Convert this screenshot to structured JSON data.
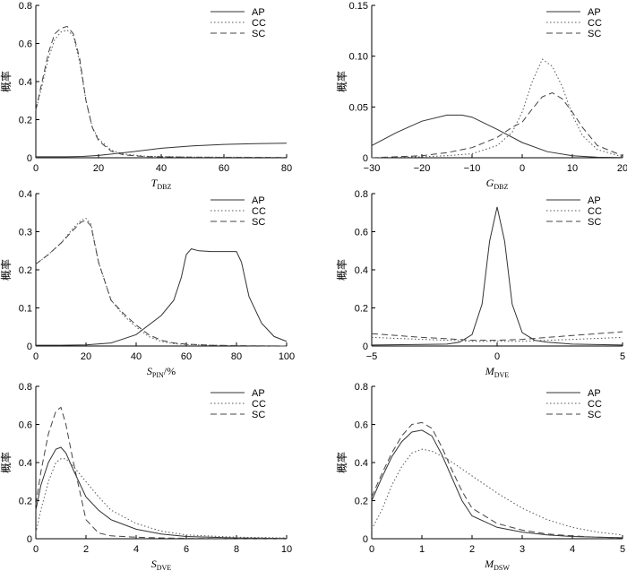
{
  "legend_labels": [
    "AP",
    "CC",
    "SC"
  ],
  "series_styles": {
    "AP": {
      "color": "#333333",
      "dash": ""
    },
    "CC": {
      "color": "#555555",
      "dash": "1.5,2.5"
    },
    "SC": {
      "color": "#444444",
      "dash": "7,4"
    }
  },
  "chart_data": [
    {
      "id": "tdbz",
      "type": "line",
      "ylabel": "概率",
      "xlabel_main": "T",
      "xlabel_sub": "DBZ",
      "xlabel_suffix": "",
      "xlim": [
        0,
        80
      ],
      "ylim": [
        0,
        0.8
      ],
      "xticks": [
        0,
        20,
        40,
        60,
        80
      ],
      "yticks": [
        0,
        0.2,
        0.4,
        0.6,
        0.8
      ],
      "xtick_labels": [
        "0",
        "20",
        "40",
        "60",
        "80"
      ],
      "ytick_labels": [
        "0",
        "0.2",
        "0.4",
        "0.6",
        "0.8"
      ],
      "series": [
        {
          "name": "AP",
          "x": [
            0,
            10,
            15,
            20,
            30,
            40,
            50,
            60,
            70,
            80
          ],
          "y": [
            0.005,
            0.005,
            0.007,
            0.012,
            0.03,
            0.05,
            0.062,
            0.07,
            0.074,
            0.076
          ]
        },
        {
          "name": "CC",
          "x": [
            0,
            2,
            4,
            6,
            8,
            10,
            12,
            14,
            16,
            18,
            20,
            24,
            28,
            35,
            50,
            80
          ],
          "y": [
            0.25,
            0.38,
            0.52,
            0.62,
            0.66,
            0.67,
            0.64,
            0.5,
            0.3,
            0.16,
            0.1,
            0.04,
            0.02,
            0.008,
            0.004,
            0.002
          ]
        },
        {
          "name": "SC",
          "x": [
            0,
            2,
            4,
            6,
            8,
            10,
            12,
            14,
            16,
            18,
            20,
            24,
            28,
            35,
            50,
            80
          ],
          "y": [
            0.25,
            0.4,
            0.55,
            0.65,
            0.68,
            0.69,
            0.65,
            0.52,
            0.3,
            0.16,
            0.09,
            0.035,
            0.015,
            0.006,
            0.003,
            0.002
          ]
        }
      ]
    },
    {
      "id": "gdbz",
      "type": "line",
      "ylabel": "概率",
      "xlabel_main": "G",
      "xlabel_sub": "DBZ",
      "xlabel_suffix": "",
      "xlim": [
        -30,
        20
      ],
      "ylim": [
        0,
        0.15
      ],
      "xticks": [
        -30,
        -20,
        -10,
        0,
        10,
        20
      ],
      "yticks": [
        0,
        0.05,
        0.1,
        0.15
      ],
      "xtick_labels": [
        "−30",
        "−20",
        "−10",
        "0",
        "10",
        "20"
      ],
      "ytick_labels": [
        "0",
        "0.05",
        "0.10",
        "0.15"
      ],
      "series": [
        {
          "name": "AP",
          "x": [
            -30,
            -25,
            -20,
            -15,
            -12,
            -10,
            -5,
            0,
            5,
            10,
            15,
            20
          ],
          "y": [
            0.012,
            0.025,
            0.036,
            0.042,
            0.042,
            0.04,
            0.028,
            0.015,
            0.006,
            0.002,
            0.0005,
            0.0002
          ]
        },
        {
          "name": "CC",
          "x": [
            -30,
            -20,
            -15,
            -10,
            -5,
            -2,
            0,
            2,
            4,
            6,
            8,
            10,
            12,
            15,
            20
          ],
          "y": [
            0.0,
            0.001,
            0.002,
            0.004,
            0.012,
            0.025,
            0.045,
            0.075,
            0.097,
            0.09,
            0.07,
            0.042,
            0.022,
            0.008,
            0.001
          ]
        },
        {
          "name": "SC",
          "x": [
            -30,
            -20,
            -15,
            -10,
            -5,
            -2,
            0,
            2,
            4,
            6,
            8,
            10,
            12,
            15,
            20
          ],
          "y": [
            0.0,
            0.002,
            0.005,
            0.01,
            0.02,
            0.03,
            0.035,
            0.048,
            0.06,
            0.064,
            0.058,
            0.045,
            0.03,
            0.012,
            0.002
          ]
        }
      ]
    },
    {
      "id": "spin",
      "type": "line",
      "ylabel": "概率",
      "xlabel_main": "S",
      "xlabel_sub": "PIN",
      "xlabel_suffix": "/%",
      "xlim": [
        0,
        100
      ],
      "ylim": [
        0,
        0.4
      ],
      "xticks": [
        0,
        20,
        40,
        60,
        80,
        100
      ],
      "yticks": [
        0,
        0.1,
        0.2,
        0.3,
        0.4
      ],
      "xtick_labels": [
        "0",
        "20",
        "40",
        "60",
        "80",
        "100"
      ],
      "ytick_labels": [
        "0",
        "0.1",
        "0.2",
        "0.3",
        "0.4"
      ],
      "series": [
        {
          "name": "AP",
          "x": [
            0,
            10,
            20,
            30,
            40,
            50,
            55,
            58,
            60,
            62,
            65,
            70,
            75,
            80,
            82,
            85,
            90,
            95,
            100
          ],
          "y": [
            0.002,
            0.002,
            0.003,
            0.008,
            0.03,
            0.08,
            0.12,
            0.18,
            0.24,
            0.255,
            0.25,
            0.248,
            0.248,
            0.248,
            0.22,
            0.13,
            0.06,
            0.025,
            0.012
          ]
        },
        {
          "name": "CC",
          "x": [
            0,
            5,
            10,
            15,
            18,
            20,
            22,
            25,
            30,
            35,
            40,
            45,
            50,
            55,
            60,
            70,
            80,
            100
          ],
          "y": [
            0.215,
            0.24,
            0.27,
            0.31,
            0.33,
            0.335,
            0.32,
            0.22,
            0.12,
            0.08,
            0.05,
            0.025,
            0.012,
            0.006,
            0.004,
            0.002,
            0.001,
            0.0
          ]
        },
        {
          "name": "SC",
          "x": [
            0,
            5,
            10,
            15,
            18,
            20,
            22,
            25,
            30,
            35,
            40,
            45,
            50,
            55,
            60,
            70,
            80,
            100
          ],
          "y": [
            0.215,
            0.24,
            0.27,
            0.305,
            0.325,
            0.33,
            0.315,
            0.22,
            0.12,
            0.085,
            0.055,
            0.03,
            0.015,
            0.008,
            0.005,
            0.002,
            0.001,
            0.0
          ]
        }
      ]
    },
    {
      "id": "mdve",
      "type": "line",
      "ylabel": "概率",
      "xlabel_main": "M",
      "xlabel_sub": "DVE",
      "xlabel_suffix": "",
      "xlim": [
        -5,
        5
      ],
      "ylim": [
        0,
        0.8
      ],
      "xticks": [
        -5,
        0,
        5
      ],
      "yticks": [
        0,
        0.2,
        0.4,
        0.6,
        0.8
      ],
      "xtick_labels": [
        "−5",
        "0",
        "5"
      ],
      "ytick_labels": [
        "0",
        "0.2",
        "0.4",
        "0.6",
        "0.8"
      ],
      "series": [
        {
          "name": "AP",
          "x": [
            -5,
            -3,
            -2,
            -1.5,
            -1,
            -0.6,
            -0.3,
            0,
            0.3,
            0.6,
            1,
            1.5,
            2,
            3,
            5
          ],
          "y": [
            0.005,
            0.008,
            0.01,
            0.02,
            0.06,
            0.22,
            0.55,
            0.73,
            0.55,
            0.22,
            0.07,
            0.03,
            0.02,
            0.01,
            0.005
          ]
        },
        {
          "name": "CC",
          "x": [
            -5,
            -4,
            -3,
            -2,
            -1,
            0,
            1,
            2,
            3,
            4,
            5
          ],
          "y": [
            0.045,
            0.04,
            0.035,
            0.03,
            0.025,
            0.025,
            0.025,
            0.03,
            0.035,
            0.04,
            0.045
          ]
        },
        {
          "name": "SC",
          "x": [
            -5,
            -4,
            -3,
            -2,
            -1,
            0,
            1,
            2,
            3,
            4,
            5
          ],
          "y": [
            0.065,
            0.055,
            0.045,
            0.038,
            0.03,
            0.03,
            0.035,
            0.045,
            0.055,
            0.065,
            0.075
          ]
        }
      ]
    },
    {
      "id": "sdve",
      "type": "line",
      "ylabel": "概率",
      "xlabel_main": "S",
      "xlabel_sub": "DVE",
      "xlabel_suffix": "",
      "xlim": [
        0,
        10
      ],
      "ylim": [
        0,
        0.8
      ],
      "xticks": [
        0,
        2,
        4,
        6,
        8,
        10
      ],
      "yticks": [
        0,
        0.2,
        0.4,
        0.6,
        0.8
      ],
      "xtick_labels": [
        "0",
        "2",
        "4",
        "6",
        "8",
        "10"
      ],
      "ytick_labels": [
        "0",
        "0.2",
        "0.4",
        "0.6",
        "0.8"
      ],
      "series": [
        {
          "name": "AP",
          "x": [
            0,
            0.2,
            0.5,
            0.8,
            1.0,
            1.2,
            1.5,
            2,
            2.5,
            3,
            4,
            5,
            6,
            8,
            10
          ],
          "y": [
            0.15,
            0.28,
            0.4,
            0.47,
            0.48,
            0.45,
            0.36,
            0.22,
            0.15,
            0.1,
            0.05,
            0.025,
            0.012,
            0.004,
            0.002
          ]
        },
        {
          "name": "CC",
          "x": [
            0,
            0.2,
            0.5,
            0.8,
            1.0,
            1.2,
            1.5,
            2,
            2.5,
            3,
            4,
            5,
            6,
            8,
            10
          ],
          "y": [
            0.03,
            0.15,
            0.3,
            0.4,
            0.42,
            0.42,
            0.38,
            0.3,
            0.22,
            0.15,
            0.08,
            0.04,
            0.02,
            0.008,
            0.004
          ]
        },
        {
          "name": "SC",
          "x": [
            0,
            0.2,
            0.5,
            0.8,
            1.0,
            1.2,
            1.5,
            2,
            2.5,
            3,
            4,
            5,
            6,
            8,
            10
          ],
          "y": [
            0.18,
            0.35,
            0.55,
            0.67,
            0.69,
            0.6,
            0.4,
            0.1,
            0.03,
            0.015,
            0.008,
            0.004,
            0.002,
            0.001,
            0.0
          ]
        }
      ]
    },
    {
      "id": "mdsw",
      "type": "line",
      "ylabel": "概率",
      "xlabel_main": "M",
      "xlabel_sub": "DSW",
      "xlabel_suffix": "",
      "xlim": [
        0,
        5
      ],
      "ylim": [
        0,
        0.8
      ],
      "xticks": [
        0,
        1,
        2,
        3,
        4,
        5
      ],
      "yticks": [
        0,
        0.2,
        0.4,
        0.6,
        0.8
      ],
      "xtick_labels": [
        "0",
        "1",
        "2",
        "3",
        "4",
        "5"
      ],
      "ytick_labels": [
        "0",
        "0.2",
        "0.4",
        "0.6",
        "0.8"
      ],
      "series": [
        {
          "name": "AP",
          "x": [
            0,
            0.2,
            0.4,
            0.6,
            0.8,
            1.0,
            1.2,
            1.4,
            1.6,
            1.8,
            2.0,
            2.5,
            3,
            3.5,
            4,
            4.5,
            5
          ],
          "y": [
            0.2,
            0.32,
            0.43,
            0.51,
            0.56,
            0.57,
            0.54,
            0.44,
            0.32,
            0.2,
            0.12,
            0.06,
            0.035,
            0.02,
            0.012,
            0.008,
            0.005
          ]
        },
        {
          "name": "CC",
          "x": [
            0,
            0.2,
            0.4,
            0.6,
            0.8,
            1.0,
            1.2,
            1.5,
            2.0,
            2.5,
            3,
            3.5,
            4,
            4.5,
            5
          ],
          "y": [
            0.05,
            0.15,
            0.28,
            0.38,
            0.45,
            0.47,
            0.46,
            0.42,
            0.33,
            0.24,
            0.16,
            0.1,
            0.06,
            0.035,
            0.02
          ]
        },
        {
          "name": "SC",
          "x": [
            0,
            0.2,
            0.4,
            0.6,
            0.8,
            1.0,
            1.2,
            1.4,
            1.6,
            1.8,
            2.0,
            2.5,
            3,
            3.5,
            4,
            4.5,
            5
          ],
          "y": [
            0.22,
            0.34,
            0.45,
            0.54,
            0.6,
            0.61,
            0.58,
            0.48,
            0.36,
            0.25,
            0.16,
            0.08,
            0.045,
            0.025,
            0.015,
            0.008,
            0.004
          ]
        }
      ]
    }
  ]
}
